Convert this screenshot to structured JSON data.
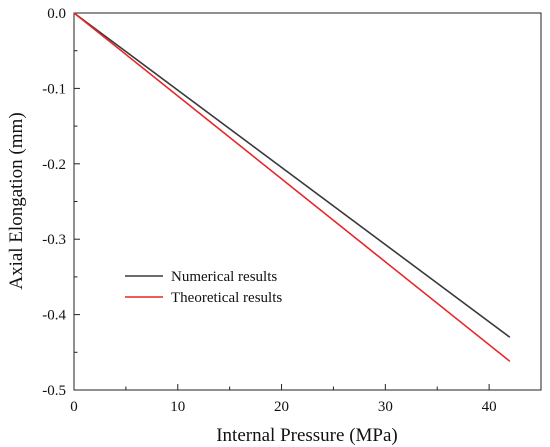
{
  "chart_data": {
    "type": "line",
    "title": "",
    "xlabel": "Internal Pressure (MPa)",
    "ylabel": "Axial Elongation (mm)",
    "xlim": [
      0,
      45
    ],
    "ylim": [
      -0.5,
      0.0
    ],
    "x_ticks": [
      0,
      10,
      20,
      30,
      40
    ],
    "x_tick_labels": [
      "0",
      "10",
      "20",
      "30",
      "40"
    ],
    "y_ticks": [
      0.0,
      -0.1,
      -0.2,
      -0.3,
      -0.4,
      -0.5
    ],
    "y_tick_labels": [
      "0.0",
      "-0.1",
      "-0.2",
      "-0.3",
      "-0.4",
      "-0.5"
    ],
    "grid": false,
    "legend_position": "lower-left",
    "series": [
      {
        "name": "Numerical results",
        "color": "#3a3a3a",
        "x": [
          0,
          42
        ],
        "y": [
          0.0,
          -0.43
        ]
      },
      {
        "name": "Theoretical results",
        "color": "#e8262a",
        "x": [
          0,
          42
        ],
        "y": [
          0.0,
          -0.462
        ]
      }
    ]
  }
}
